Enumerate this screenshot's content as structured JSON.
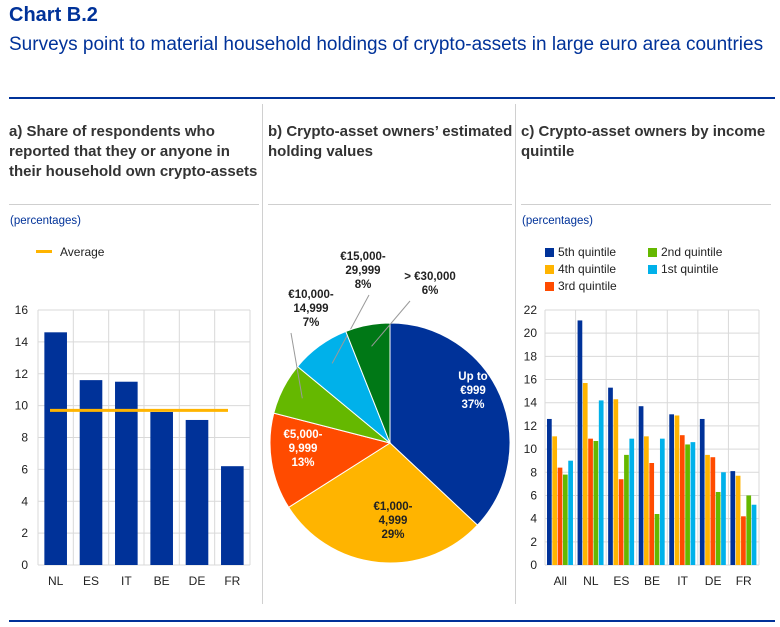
{
  "header": {
    "label": "Chart B.2",
    "title": "Surveys point to material household holdings of crypto-assets in large euro area countries"
  },
  "colors": {
    "q5": "#003299",
    "q4": "#ffb400",
    "q3": "#ff4b00",
    "q2": "#65b800",
    "q1": "#00b1ea",
    "green_dark": "#007816",
    "average": "#ffb400"
  },
  "panel_a": {
    "heading": "a) Share of respondents who reported that they or anyone in their household own crypto-assets",
    "unit": "(percentages)",
    "legend_average": "Average"
  },
  "panel_b": {
    "heading": "b) Crypto-asset owners’ estimated holding values"
  },
  "panel_c": {
    "heading": "c) Crypto-asset owners by income quintile",
    "unit": "(percentages)"
  },
  "chart_data": [
    {
      "type": "bar",
      "title": "a) Share of respondents who reported that they or anyone in their household own crypto-assets",
      "ylabel": "(percentages)",
      "categories": [
        "NL",
        "ES",
        "IT",
        "BE",
        "DE",
        "FR"
      ],
      "values": [
        14.6,
        11.6,
        11.5,
        9.6,
        9.1,
        6.2
      ],
      "average": 9.7,
      "ylim": [
        0,
        16
      ],
      "yticks": [
        0,
        2,
        4,
        6,
        8,
        10,
        12,
        14,
        16
      ],
      "grid": true,
      "legend": [
        "Average"
      ]
    },
    {
      "type": "pie",
      "title": "b) Crypto-asset owners’ estimated holding values",
      "slices": [
        {
          "label_lines": [
            "Up to",
            "€999"
          ],
          "value": 37,
          "pct": "37%",
          "color_key": "q5",
          "label_color": "#ffffff"
        },
        {
          "label_lines": [
            "€1,000-",
            "4,999"
          ],
          "value": 29,
          "pct": "29%",
          "color_key": "q4",
          "label_color": "#222222"
        },
        {
          "label_lines": [
            "€5,000-",
            "9,999"
          ],
          "value": 13,
          "pct": "13%",
          "color_key": "q3",
          "label_color": "#ffffff"
        },
        {
          "label_lines": [
            "€10,000-",
            "14,999"
          ],
          "value": 7,
          "pct": "7%",
          "color_key": "q2",
          "label_color": "#222222"
        },
        {
          "label_lines": [
            "€15,000-",
            "29,999"
          ],
          "value": 8,
          "pct": "8%",
          "color_key": "q1",
          "label_color": "#222222"
        },
        {
          "label_lines": [
            "> €30,000"
          ],
          "value": 6,
          "pct": "6%",
          "color_key": "green_dark",
          "label_color": "#222222"
        }
      ]
    },
    {
      "type": "bar",
      "title": "c) Crypto-asset owners by income quintile",
      "ylabel": "(percentages)",
      "categories": [
        "All",
        "NL",
        "ES",
        "BE",
        "IT",
        "DE",
        "FR"
      ],
      "series": [
        {
          "name": "5th quintile",
          "color_key": "q5",
          "values": [
            12.6,
            21.1,
            15.3,
            13.7,
            13.0,
            12.6,
            8.1
          ]
        },
        {
          "name": "4th quintile",
          "color_key": "q4",
          "values": [
            11.1,
            15.7,
            14.3,
            11.1,
            12.9,
            9.5,
            7.7
          ]
        },
        {
          "name": "3rd quintile",
          "color_key": "q3",
          "values": [
            8.4,
            10.9,
            7.4,
            8.8,
            11.2,
            9.3,
            4.2
          ]
        },
        {
          "name": "2nd quintile",
          "color_key": "q2",
          "values": [
            7.8,
            10.7,
            9.5,
            4.4,
            10.4,
            6.3,
            6.0
          ]
        },
        {
          "name": "1st quintile",
          "color_key": "q1",
          "values": [
            9.0,
            14.2,
            10.9,
            10.9,
            10.6,
            8.0,
            5.2
          ]
        }
      ],
      "ylim": [
        0,
        22
      ],
      "yticks": [
        0,
        2,
        4,
        6,
        8,
        10,
        12,
        14,
        16,
        18,
        20,
        22
      ],
      "grid": true
    }
  ]
}
